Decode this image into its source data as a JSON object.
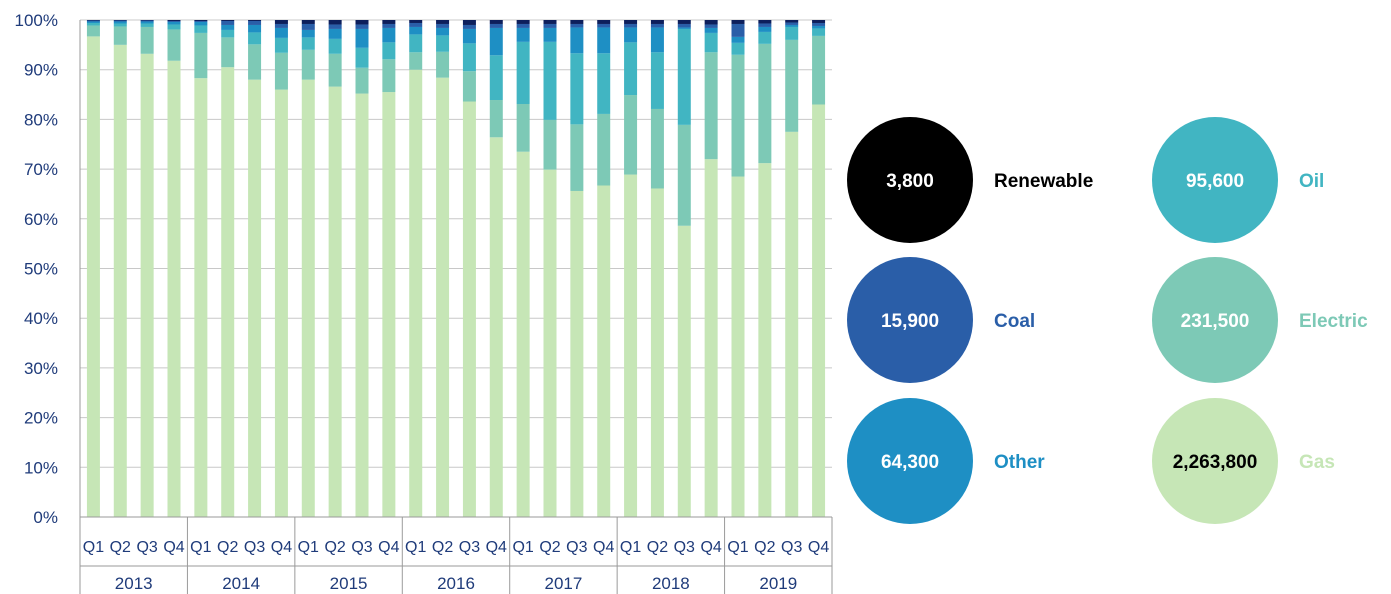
{
  "chart_data": {
    "type": "bar",
    "stacked": true,
    "percent": true,
    "categories": [
      "Q1",
      "Q2",
      "Q3",
      "Q4",
      "Q1",
      "Q2",
      "Q3",
      "Q4",
      "Q1",
      "Q2",
      "Q3",
      "Q4",
      "Q1",
      "Q2",
      "Q3",
      "Q4",
      "Q1",
      "Q2",
      "Q3",
      "Q4",
      "Q1",
      "Q2",
      "Q3",
      "Q4",
      "Q1",
      "Q2",
      "Q3",
      "Q4"
    ],
    "years": [
      "2013",
      "2014",
      "2015",
      "2016",
      "2017",
      "2018",
      "2019"
    ],
    "yticks": [
      "0%",
      "10%",
      "20%",
      "30%",
      "40%",
      "50%",
      "60%",
      "70%",
      "80%",
      "90%",
      "100%"
    ],
    "ylim": [
      0,
      100
    ],
    "grid": true,
    "series": [
      {
        "name": "Gas",
        "color": "#c6e6b6",
        "values": [
          96.7,
          95.0,
          93.2,
          91.8,
          88.3,
          90.5,
          88.0,
          86.0,
          88.0,
          86.6,
          85.2,
          85.5,
          90.0,
          88.4,
          83.6,
          76.4,
          73.5,
          69.9,
          65.6,
          66.7,
          68.9,
          66.1,
          58.6,
          72.0,
          68.5,
          71.2,
          77.5,
          83.0
        ]
      },
      {
        "name": "Electric",
        "color": "#7dc9b6",
        "values": [
          2.2,
          3.7,
          5.4,
          6.3,
          9.1,
          6.0,
          7.1,
          7.4,
          6.0,
          6.6,
          5.2,
          6.6,
          3.5,
          5.2,
          6.1,
          7.5,
          9.6,
          10.0,
          13.4,
          14.4,
          16.0,
          16.0,
          20.3,
          21.5,
          24.5,
          24.0,
          18.5,
          13.8
        ]
      },
      {
        "name": "Oil",
        "color": "#41b5c2",
        "values": [
          0.5,
          0.6,
          0.7,
          1.0,
          1.5,
          1.5,
          2.4,
          3.0,
          2.5,
          3.0,
          4.0,
          3.4,
          3.6,
          3.3,
          5.6,
          9.0,
          12.5,
          15.7,
          14.3,
          12.2,
          10.6,
          11.4,
          19.3,
          3.9,
          2.4,
          2.4,
          2.6,
          1.5
        ]
      },
      {
        "name": "Other",
        "color": "#1e8fc4",
        "values": [
          0.3,
          0.4,
          0.4,
          0.5,
          0.7,
          1.0,
          1.5,
          2.0,
          1.5,
          2.0,
          3.8,
          2.9,
          1.5,
          1.5,
          2.9,
          5.5,
          2.8,
          2.8,
          5.2,
          5.2,
          3.0,
          5.0,
          0.3,
          1.0,
          1.2,
          1.0,
          0.4,
          0.5
        ]
      },
      {
        "name": "Coal",
        "color": "#2a5ea8",
        "values": [
          0.2,
          0.2,
          0.2,
          0.2,
          0.2,
          0.8,
          0.8,
          0.8,
          1.2,
          0.9,
          0.9,
          0.8,
          0.8,
          0.8,
          0.8,
          0.8,
          0.8,
          0.8,
          0.7,
          0.7,
          0.7,
          0.7,
          0.7,
          0.7,
          2.6,
          0.7,
          0.5,
          0.6
        ]
      },
      {
        "name": "Renewable",
        "color": "#0d1f5c",
        "values": [
          0.1,
          0.1,
          0.1,
          0.2,
          0.2,
          0.2,
          0.2,
          0.8,
          0.8,
          0.9,
          0.9,
          0.8,
          0.6,
          0.8,
          1.0,
          0.8,
          0.8,
          0.8,
          0.8,
          0.8,
          0.8,
          0.8,
          0.8,
          0.9,
          0.8,
          0.7,
          0.5,
          0.6
        ]
      }
    ]
  },
  "bubbles": [
    {
      "value": "3,800",
      "label": "Renewable",
      "fill": "#000000",
      "text_color": "#ffffff",
      "label_color": "#000000"
    },
    {
      "value": "95,600",
      "label": "Oil",
      "fill": "#41b5c2",
      "text_color": "#ffffff",
      "label_color": "#41b5c2"
    },
    {
      "value": "15,900",
      "label": "Coal",
      "fill": "#2a5ea8",
      "text_color": "#ffffff",
      "label_color": "#2a5ea8"
    },
    {
      "value": "231,500",
      "label": "Electric",
      "fill": "#7dc9b6",
      "text_color": "#ffffff",
      "label_color": "#7dc9b6"
    },
    {
      "value": "64,300",
      "label": "Other",
      "fill": "#1e8fc4",
      "text_color": "#ffffff",
      "label_color": "#1e8fc4"
    },
    {
      "value": "2,263,800",
      "label": "Gas",
      "fill": "#c6e6b6",
      "text_color": "#000000",
      "label_color": "#c6e6b6"
    }
  ]
}
